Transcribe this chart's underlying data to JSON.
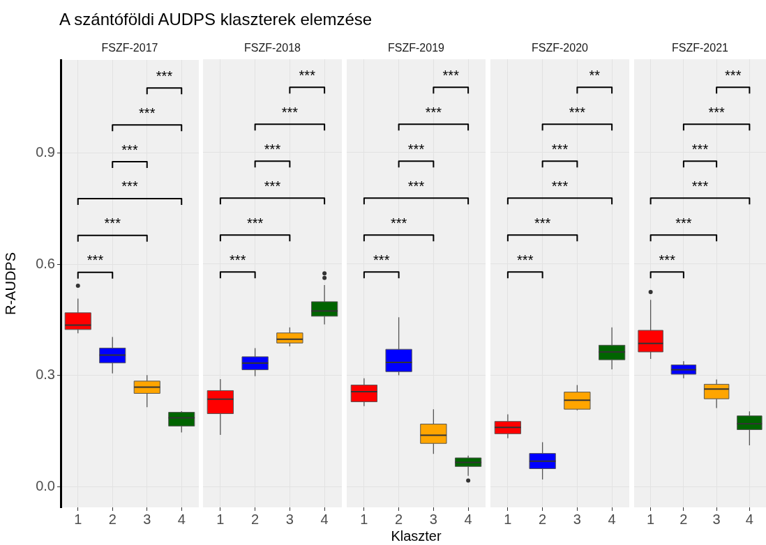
{
  "chart_data": [
    {
      "type": "box",
      "title": "A szántóföldi AUDPS klaszterek elemzése",
      "subtitle": "FSZF-2017",
      "ylabel": "R-AUDPS",
      "categories": [
        "1",
        "2",
        "3",
        "4"
      ],
      "colors": [
        "#ff0000",
        "#0000ff",
        "#ffa500",
        "#006400"
      ],
      "ylim": [
        -0.055,
        1.15
      ],
      "yticks": [
        {
          "value": 0,
          "label": "0.0"
        },
        0.3,
        0.6,
        0.9
      ],
      "grid": true,
      "boxes": [
        {
          "low": 0.414,
          "q1": 0.424,
          "median": 0.436,
          "q3": 0.469,
          "high": 0.507,
          "outliers": [
            0.542
          ]
        },
        {
          "low": 0.306,
          "q1": 0.334,
          "median": 0.355,
          "q3": 0.374,
          "high": 0.404
        },
        {
          "low": 0.215,
          "q1": 0.252,
          "median": 0.269,
          "q3": 0.285,
          "high": 0.301
        },
        {
          "low": 0.147,
          "q1": 0.164,
          "median": 0.186,
          "q3": 0.201,
          "high": 0.204
        }
      ],
      "annotations": [
        "***",
        "***",
        "***",
        "***",
        "***",
        "***"
      ]
    },
    {
      "type": "box",
      "subtitle": "FSZF-2018",
      "categories": [
        "1",
        "2",
        "3",
        "4"
      ],
      "colors": [
        "#ff0000",
        "#0000ff",
        "#ffa500",
        "#006400"
      ],
      "ylim": [
        -0.055,
        1.15
      ],
      "yticks": [
        0,
        0.3,
        0.6,
        0.9
      ],
      "grid": true,
      "tick_labels": "x",
      "boxes": [
        {
          "low": 0.14,
          "q1": 0.197,
          "median": 0.236,
          "q3": 0.259,
          "high": 0.29
        },
        {
          "low": 0.298,
          "q1": 0.315,
          "median": 0.333,
          "q3": 0.35,
          "high": 0.373
        },
        {
          "low": 0.378,
          "q1": 0.387,
          "median": 0.397,
          "q3": 0.414,
          "high": 0.429
        },
        {
          "low": 0.437,
          "q1": 0.459,
          "median": 0.473,
          "q3": 0.498,
          "high": 0.543,
          "outliers": [
            0.562,
            0.574
          ]
        }
      ],
      "annotations": [
        "***",
        "***",
        "***",
        "***",
        "***",
        "***"
      ]
    },
    {
      "type": "box",
      "subtitle": "FSZF-2019",
      "xlabel": "Klaszter",
      "categories": [
        "1",
        "2",
        "3",
        "4"
      ],
      "colors": [
        "#ff0000",
        "#0000ff",
        "#ffa500",
        "#006400"
      ],
      "ylim": [
        -0.055,
        1.15
      ],
      "yticks": [
        0,
        0.3,
        0.6,
        0.9
      ],
      "grid": true,
      "tick_labels": "x",
      "boxes": [
        {
          "low": 0.217,
          "q1": 0.229,
          "median": 0.256,
          "q3": 0.274,
          "high": 0.292
        },
        {
          "low": 0.3,
          "q1": 0.31,
          "median": 0.335,
          "q3": 0.37,
          "high": 0.456
        },
        {
          "low": 0.089,
          "q1": 0.117,
          "median": 0.139,
          "q3": 0.169,
          "high": 0.209
        },
        {
          "low": 0.03,
          "q1": 0.055,
          "median": 0.066,
          "q3": 0.078,
          "high": 0.084,
          "outliers": [
            0.017
          ]
        }
      ],
      "annotations": [
        "***",
        "***",
        "***",
        "***",
        "***",
        "***"
      ]
    },
    {
      "type": "box",
      "subtitle": "FSZF-2020",
      "categories": [
        "1",
        "2",
        "3",
        "4"
      ],
      "colors": [
        "#ff0000",
        "#0000ff",
        "#ffa500",
        "#006400"
      ],
      "ylim": [
        -0.055,
        1.15
      ],
      "yticks": [
        0,
        0.3,
        0.6,
        0.9
      ],
      "grid": true,
      "tick_labels": "x",
      "boxes": [
        {
          "low": 0.131,
          "q1": 0.143,
          "median": 0.16,
          "q3": 0.176,
          "high": 0.195
        },
        {
          "low": 0.02,
          "q1": 0.049,
          "median": 0.069,
          "q3": 0.09,
          "high": 0.12
        },
        {
          "low": 0.206,
          "q1": 0.209,
          "median": 0.233,
          "q3": 0.255,
          "high": 0.274
        },
        {
          "low": 0.316,
          "q1": 0.342,
          "median": 0.363,
          "q3": 0.381,
          "high": 0.429
        }
      ],
      "annotations": [
        "***",
        "***",
        "***",
        "***",
        "***",
        "**"
      ]
    },
    {
      "type": "box",
      "subtitle": "FSZF-2021",
      "categories": [
        "1",
        "2",
        "3",
        "4"
      ],
      "colors": [
        "#ff0000",
        "#0000ff",
        "#ffa500",
        "#006400"
      ],
      "ylim": [
        -0.055,
        1.15
      ],
      "yticks": [
        0,
        0.3,
        0.6,
        0.9
      ],
      "grid": true,
      "tick_labels": "x",
      "boxes": [
        {
          "low": 0.344,
          "q1": 0.363,
          "median": 0.386,
          "q3": 0.421,
          "high": 0.503,
          "outliers": [
            0.524
          ]
        },
        {
          "low": 0.292,
          "q1": 0.303,
          "median": 0.315,
          "q3": 0.328,
          "high": 0.338
        },
        {
          "low": 0.212,
          "q1": 0.237,
          "median": 0.263,
          "q3": 0.276,
          "high": 0.289
        },
        {
          "low": 0.112,
          "q1": 0.154,
          "median": 0.17,
          "q3": 0.191,
          "high": 0.203
        }
      ],
      "annotations": [
        "***",
        "***",
        "***",
        "***",
        "***",
        "***"
      ]
    }
  ]
}
